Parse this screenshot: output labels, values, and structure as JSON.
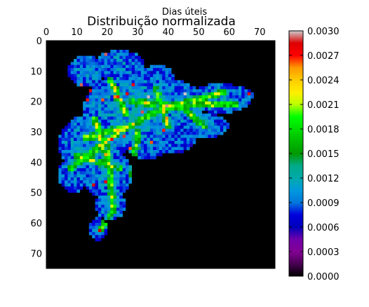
{
  "chart_data": {
    "type": "heatmap",
    "title": "Distribuição normalizada",
    "xlabel": "Dias úteis",
    "ylabel": "",
    "xlim": [
      0,
      75
    ],
    "ylim": [
      75,
      0
    ],
    "x_ticks": [
      0,
      10,
      20,
      30,
      40,
      50,
      60,
      70
    ],
    "y_ticks": [
      0,
      10,
      20,
      30,
      40,
      50,
      60,
      70
    ],
    "grid": false,
    "colormap": "spectral",
    "colorbar": {
      "min": 0.0,
      "max": 0.003,
      "ticks": [
        "0.0000",
        "0.0003",
        "0.0006",
        "0.0009",
        "0.0012",
        "0.0015",
        "0.0018",
        "0.0021",
        "0.0024",
        "0.0027",
        "0.0030"
      ],
      "position": "right"
    },
    "background_color": "#000000"
  }
}
